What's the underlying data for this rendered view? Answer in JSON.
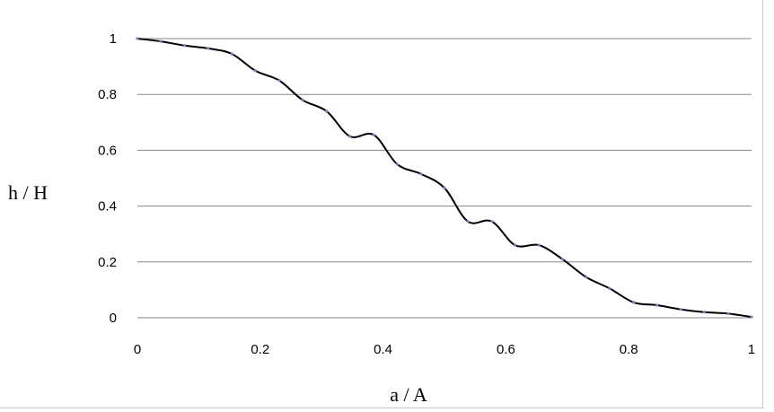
{
  "chart_data": {
    "type": "line",
    "title": "",
    "xlabel": "a / A",
    "ylabel": "h / H",
    "xlim": [
      0,
      1
    ],
    "ylim": [
      0,
      1
    ],
    "xticks": [
      "0",
      "0.2",
      "0.4",
      "0.6",
      "0.8",
      "1"
    ],
    "yticks": [
      "0",
      "0.2",
      "0.4",
      "0.6",
      "0.8",
      "1"
    ],
    "grid": "horizontal",
    "legend": "none",
    "line_color": "#000000",
    "marker_color": "#8080c0",
    "series": [
      {
        "x": [
          0,
          0.038,
          0.077,
          0.115,
          0.154,
          0.192,
          0.231,
          0.269,
          0.308,
          0.346,
          0.385,
          0.423,
          0.462,
          0.5,
          0.538,
          0.577,
          0.615,
          0.654,
          0.692,
          0.731,
          0.769,
          0.808,
          0.846,
          0.885,
          0.923,
          0.962,
          1
        ],
        "y": [
          1,
          0.99,
          0.975,
          0.965,
          0.945,
          0.885,
          0.85,
          0.78,
          0.74,
          0.65,
          0.655,
          0.55,
          0.515,
          0.465,
          0.345,
          0.345,
          0.26,
          0.26,
          0.21,
          0.145,
          0.105,
          0.055,
          0.045,
          0.03,
          0.02,
          0.015,
          0.003
        ]
      }
    ]
  }
}
